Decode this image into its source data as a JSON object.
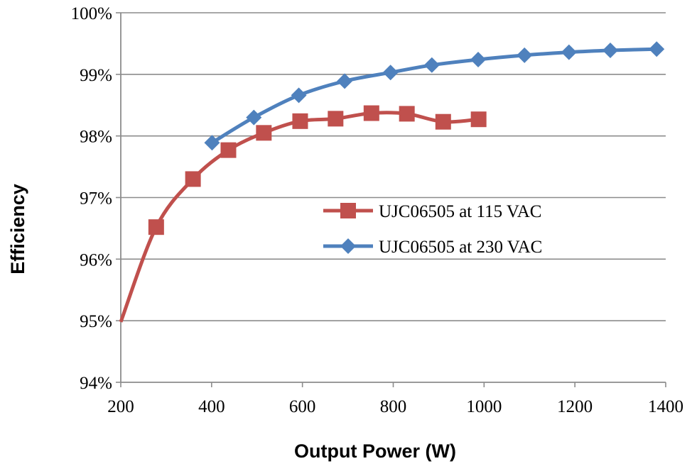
{
  "chart_data": {
    "type": "line",
    "xlabel": "Output Power (W)",
    "ylabel": "Efficiency",
    "xlim": [
      200,
      1400
    ],
    "ylim": [
      94,
      100
    ],
    "x_ticks": [
      "200",
      "400",
      "600",
      "800",
      "1000",
      "1200",
      "1400"
    ],
    "y_ticks": [
      "94%",
      "95%",
      "96%",
      "97%",
      "98%",
      "99%",
      "100%"
    ],
    "grid": "horizontal",
    "legend_position": "right",
    "series": [
      {
        "name": "UJC06505 at 115 VAC",
        "color": "#c0504d",
        "marker": "square",
        "points": [
          {
            "x": 200,
            "y": 94.98,
            "marker": false
          },
          {
            "x": 278,
            "y": 96.52
          },
          {
            "x": 359,
            "y": 97.3
          },
          {
            "x": 437,
            "y": 97.77
          },
          {
            "x": 515,
            "y": 98.05
          },
          {
            "x": 595,
            "y": 98.24
          },
          {
            "x": 673,
            "y": 98.28
          },
          {
            "x": 752,
            "y": 98.37
          },
          {
            "x": 830,
            "y": 98.36
          },
          {
            "x": 910,
            "y": 98.23
          },
          {
            "x": 988,
            "y": 98.27
          }
        ]
      },
      {
        "name": "UJC06505 at 230 VAC",
        "color": "#4f81bd",
        "marker": "diamond",
        "points": [
          {
            "x": 401,
            "y": 97.89
          },
          {
            "x": 493,
            "y": 98.3
          },
          {
            "x": 592,
            "y": 98.66
          },
          {
            "x": 693,
            "y": 98.89
          },
          {
            "x": 794,
            "y": 99.03
          },
          {
            "x": 885,
            "y": 99.15
          },
          {
            "x": 987,
            "y": 99.24
          },
          {
            "x": 1089,
            "y": 99.31
          },
          {
            "x": 1187,
            "y": 99.36
          },
          {
            "x": 1278,
            "y": 99.39
          },
          {
            "x": 1380,
            "y": 99.41
          }
        ]
      }
    ]
  }
}
